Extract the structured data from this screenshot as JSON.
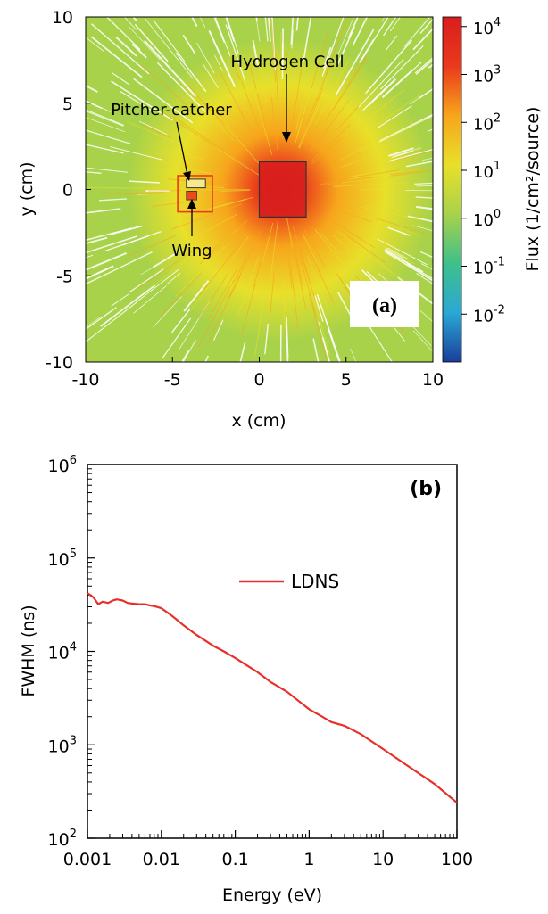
{
  "chart_data": [
    {
      "type": "heatmap",
      "panel_label": "(a)",
      "xlabel": "x (cm)",
      "ylabel": "y (cm)",
      "xlim": [
        -10,
        10
      ],
      "ylim": [
        -10,
        10
      ],
      "xticks": [
        -10,
        -5,
        0,
        5,
        10
      ],
      "yticks": [
        -10,
        -5,
        0,
        5,
        10
      ],
      "colorbar": {
        "label": "Flux (1/cm²/source)",
        "scale": "log",
        "range_log10": [
          -3,
          4.2
        ],
        "ticks": [
          {
            "exp": 4,
            "text": "4"
          },
          {
            "exp": 3,
            "text": "3"
          },
          {
            "exp": 2,
            "text": "2"
          },
          {
            "exp": 1,
            "text": "1"
          },
          {
            "exp": 0,
            "text": "0"
          },
          {
            "exp": -1,
            "text": "-1"
          },
          {
            "exp": -2,
            "text": "-2"
          }
        ],
        "colors": [
          "#1a3e9a",
          "#2aa8d6",
          "#3fc08a",
          "#a8d24a",
          "#e8e02a",
          "#f7a51c",
          "#ea3a1c",
          "#d81e1e"
        ]
      },
      "annotations": [
        {
          "text": "Hydrogen Cell"
        },
        {
          "text": "Pitcher-catcher"
        },
        {
          "text": "Wing"
        }
      ],
      "regions": [
        {
          "name": "Hydrogen Cell",
          "x": [
            0,
            2.7
          ],
          "y": [
            -1.6,
            1.6
          ]
        },
        {
          "name": "Pitcher-catcher box",
          "x": [
            -4.7,
            -2.7
          ],
          "y": [
            -1.3,
            0.8
          ]
        },
        {
          "name": "Pitcher-catcher",
          "x": [
            -4.2,
            -3.1
          ],
          "y": [
            0.1,
            0.6
          ]
        },
        {
          "name": "Wing",
          "x": [
            -4.2,
            -3.6
          ],
          "y": [
            -0.6,
            -0.1
          ]
        }
      ],
      "source_center": [
        1.3,
        0
      ]
    },
    {
      "type": "line",
      "panel_label": "(b)",
      "xlabel": "Energy (eV)",
      "ylabel": "FWHM (ns)",
      "xscale": "log",
      "yscale": "log",
      "xlim": [
        0.001,
        100
      ],
      "ylim": [
        100,
        1000000
      ],
      "xticks": [
        "0.001",
        "0.01",
        "0.1",
        "1",
        "10",
        "100"
      ],
      "yticks": [
        {
          "exp": 6,
          "text": "6"
        },
        {
          "exp": 5,
          "text": "5"
        },
        {
          "exp": 4,
          "text": "4"
        },
        {
          "exp": 3,
          "text": "3"
        },
        {
          "exp": 2,
          "text": "2"
        }
      ],
      "legend": "center",
      "series": [
        {
          "name": "LDNS",
          "color": "#e8302a",
          "x": [
            0.001,
            0.0012,
            0.0014,
            0.0016,
            0.0019,
            0.0022,
            0.0025,
            0.003,
            0.0035,
            0.004,
            0.005,
            0.006,
            0.007,
            0.008,
            0.01,
            0.013,
            0.016,
            0.02,
            0.03,
            0.05,
            0.07,
            0.1,
            0.2,
            0.3,
            0.5,
            0.7,
            1,
            1.5,
            2,
            3,
            5,
            10,
            20,
            50,
            100
          ],
          "y": [
            42000,
            38000,
            32000,
            34000,
            33000,
            35000,
            36000,
            35000,
            33000,
            32500,
            32000,
            32000,
            31000,
            30500,
            29000,
            25000,
            22000,
            19000,
            15000,
            11500,
            10000,
            8500,
            6000,
            4700,
            3700,
            3000,
            2400,
            2000,
            1750,
            1600,
            1300,
            900,
            620,
            380,
            240
          ]
        }
      ]
    }
  ]
}
